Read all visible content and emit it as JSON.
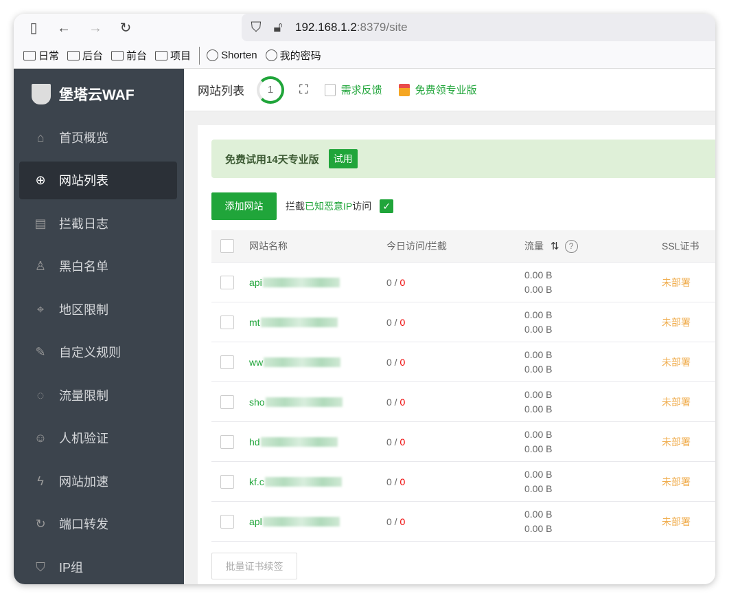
{
  "browser": {
    "url_host": "192.168.1.2",
    "url_rest": ":8379/site",
    "bookmarks": [
      {
        "label": "日常",
        "icon": "folder-icon"
      },
      {
        "label": "后台",
        "icon": "folder-icon"
      },
      {
        "label": "前台",
        "icon": "folder-icon"
      },
      {
        "label": "项目",
        "icon": "folder-icon"
      },
      {
        "label": "Shorten",
        "icon": "globe-icon"
      },
      {
        "label": "我的密码",
        "icon": "globe-icon"
      }
    ]
  },
  "app": {
    "logo": "堡塔云WAF",
    "accent": "#20a53a"
  },
  "sidebar": {
    "items": [
      {
        "label": "首页概览",
        "icon": "home-icon"
      },
      {
        "label": "网站列表",
        "icon": "globe-icon",
        "active": true
      },
      {
        "label": "拦截日志",
        "icon": "log-icon"
      },
      {
        "label": "黑白名单",
        "icon": "user-list-icon"
      },
      {
        "label": "地区限制",
        "icon": "location-icon"
      },
      {
        "label": "自定义规则",
        "icon": "edit-rule-icon"
      },
      {
        "label": "流量限制",
        "icon": "traffic-icon"
      },
      {
        "label": "人机验证",
        "icon": "robot-icon"
      },
      {
        "label": "网站加速",
        "icon": "lightning-icon"
      },
      {
        "label": "端口转发",
        "icon": "redirect-icon"
      },
      {
        "label": "IP组",
        "icon": "ip-shield-icon"
      }
    ]
  },
  "header": {
    "title": "网站列表",
    "count": "1",
    "feedback": "需求反馈",
    "free_pro": "免费领专业版"
  },
  "banner": {
    "text": "免费试用14天专业版",
    "button": "试用"
  },
  "actions": {
    "add_site": "添加网站",
    "block_pre": "拦截",
    "block_green": "已知恶意IP",
    "block_post": "访问",
    "block_checked": true
  },
  "table": {
    "headers": {
      "name": "网站名称",
      "visits": "今日访问/拦截",
      "traffic": "流量",
      "ssl": "SSL证书"
    },
    "rows": [
      {
        "name": "api",
        "visits": "0",
        "blocked": "0",
        "in": "0.00 B",
        "out": "0.00 B",
        "ssl": "未部署"
      },
      {
        "name": "mt",
        "visits": "0",
        "blocked": "0",
        "in": "0.00 B",
        "out": "0.00 B",
        "ssl": "未部署"
      },
      {
        "name": "ww",
        "visits": "0",
        "blocked": "0",
        "in": "0.00 B",
        "out": "0.00 B",
        "ssl": "未部署"
      },
      {
        "name": "sho",
        "visits": "0",
        "blocked": "0",
        "in": "0.00 B",
        "out": "0.00 B",
        "ssl": "未部署"
      },
      {
        "name": "hd",
        "visits": "0",
        "blocked": "0",
        "in": "0.00 B",
        "out": "0.00 B",
        "ssl": "未部署"
      },
      {
        "name": "kf.c",
        "visits": "0",
        "blocked": "0",
        "in": "0.00 B",
        "out": "0.00 B",
        "ssl": "未部署"
      },
      {
        "name": "apl",
        "visits": "0",
        "blocked": "0",
        "in": "0.00 B",
        "out": "0.00 B",
        "ssl": "未部署"
      }
    ]
  },
  "footer": {
    "batch_renew": "批量证书续签"
  }
}
